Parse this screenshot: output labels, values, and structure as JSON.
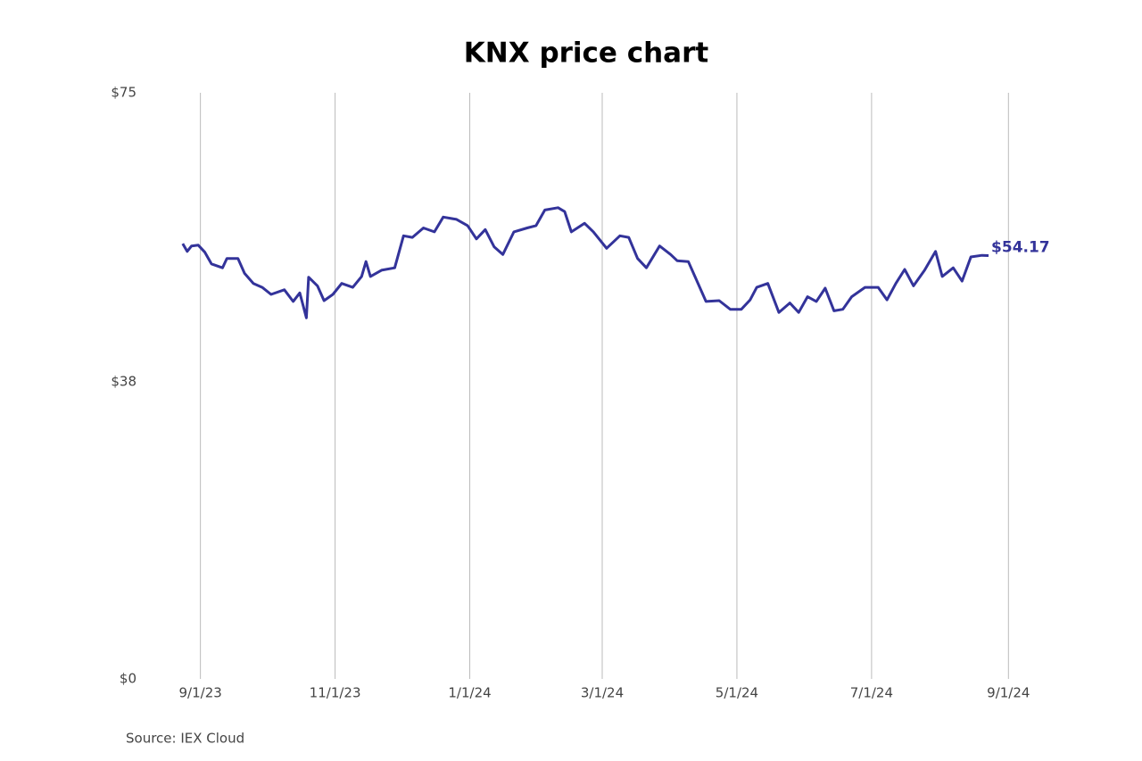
{
  "chart_data": {
    "type": "line",
    "title": "KNX price chart",
    "source": "Source: IEX Cloud",
    "x": [
      "2023-08-24",
      "2023-08-26",
      "2023-08-28",
      "2023-08-31",
      "2023-09-03",
      "2023-09-06",
      "2023-09-11",
      "2023-09-13",
      "2023-09-18",
      "2023-09-21",
      "2023-09-25",
      "2023-09-29",
      "2023-10-03",
      "2023-10-09",
      "2023-10-13",
      "2023-10-16",
      "2023-10-19",
      "2023-10-20",
      "2023-10-24",
      "2023-10-27",
      "2023-10-31",
      "2023-11-04",
      "2023-11-09",
      "2023-11-13",
      "2023-11-15",
      "2023-11-17",
      "2023-11-22",
      "2023-11-28",
      "2023-12-02",
      "2023-12-06",
      "2023-12-11",
      "2023-12-16",
      "2023-12-20",
      "2023-12-26",
      "2023-12-31",
      "2024-01-04",
      "2024-01-08",
      "2024-01-12",
      "2024-01-16",
      "2024-01-21",
      "2024-01-27",
      "2024-01-31",
      "2024-02-04",
      "2024-02-10",
      "2024-02-13",
      "2024-02-16",
      "2024-02-22",
      "2024-02-26",
      "2024-03-03",
      "2024-03-09",
      "2024-03-13",
      "2024-03-17",
      "2024-03-21",
      "2024-03-27",
      "2024-04-01",
      "2024-04-04",
      "2024-04-09",
      "2024-04-12",
      "2024-04-17",
      "2024-04-23",
      "2024-04-28",
      "2024-05-03",
      "2024-05-07",
      "2024-05-10",
      "2024-05-15",
      "2024-05-20",
      "2024-05-25",
      "2024-05-29",
      "2024-06-02",
      "2024-06-06",
      "2024-06-10",
      "2024-06-14",
      "2024-06-18",
      "2024-06-22",
      "2024-06-28",
      "2024-07-04",
      "2024-07-08",
      "2024-07-12",
      "2024-07-16",
      "2024-07-20",
      "2024-07-25",
      "2024-07-30",
      "2024-08-02",
      "2024-08-07",
      "2024-08-11",
      "2024-08-15",
      "2024-08-20",
      "2024-08-23"
    ],
    "series": [
      {
        "name": "KNX",
        "color": "#33339a",
        "values": [
          55.7,
          54.7,
          55.4,
          55.5,
          54.6,
          53.1,
          52.6,
          53.8,
          53.8,
          51.9,
          50.6,
          50.1,
          49.2,
          49.8,
          48.3,
          49.4,
          46.2,
          51.4,
          50.3,
          48.4,
          49.2,
          50.6,
          50.1,
          51.5,
          53.4,
          51.5,
          52.3,
          52.6,
          56.7,
          56.5,
          57.7,
          57.2,
          59.1,
          58.8,
          58.0,
          56.3,
          57.5,
          55.3,
          54.3,
          57.2,
          57.7,
          58.0,
          60.0,
          60.3,
          59.8,
          57.2,
          58.3,
          57.2,
          55.1,
          56.7,
          56.5,
          53.8,
          52.6,
          55.4,
          54.3,
          53.5,
          53.4,
          51.5,
          48.3,
          48.4,
          47.3,
          47.3,
          48.5,
          50.1,
          50.6,
          46.9,
          48.1,
          46.9,
          48.9,
          48.3,
          50.0,
          47.1,
          47.3,
          48.9,
          50.1,
          50.1,
          48.5,
          50.6,
          52.4,
          50.3,
          52.3,
          54.7,
          51.5,
          52.6,
          50.9,
          54.0,
          54.2,
          54.17
        ]
      }
    ],
    "end_label": "$54.17",
    "xlim": [
      "2023-08-18",
      "2024-09-13"
    ],
    "xticks": [
      {
        "value": "2023-09-01",
        "label": "9/1/23"
      },
      {
        "value": "2023-11-01",
        "label": "11/1/23"
      },
      {
        "value": "2024-01-01",
        "label": "1/1/24"
      },
      {
        "value": "2024-03-01",
        "label": "3/1/24"
      },
      {
        "value": "2024-05-01",
        "label": "5/1/24"
      },
      {
        "value": "2024-07-01",
        "label": "7/1/24"
      },
      {
        "value": "2024-09-01",
        "label": "9/1/24"
      }
    ],
    "ylim": [
      0,
      75
    ],
    "yticks": [
      {
        "value": 0,
        "label": "$0"
      },
      {
        "value": 38,
        "label": "$38"
      },
      {
        "value": 75,
        "label": "$75"
      }
    ],
    "grid": "x"
  }
}
